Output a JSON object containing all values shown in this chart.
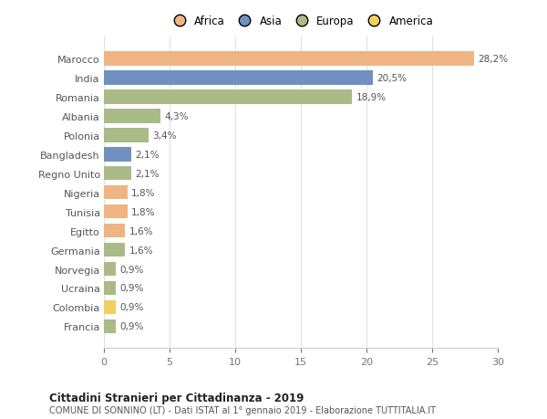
{
  "countries": [
    "Marocco",
    "India",
    "Romania",
    "Albania",
    "Polonia",
    "Bangladesh",
    "Regno Unito",
    "Nigeria",
    "Tunisia",
    "Egitto",
    "Germania",
    "Norvegia",
    "Ucraina",
    "Colombia",
    "Francia"
  ],
  "values": [
    28.2,
    20.5,
    18.9,
    4.3,
    3.4,
    2.1,
    2.1,
    1.8,
    1.8,
    1.6,
    1.6,
    0.9,
    0.9,
    0.9,
    0.9
  ],
  "labels": [
    "28,2%",
    "20,5%",
    "18,9%",
    "4,3%",
    "3,4%",
    "2,1%",
    "2,1%",
    "1,8%",
    "1,8%",
    "1,6%",
    "1,6%",
    "0,9%",
    "0,9%",
    "0,9%",
    "0,9%"
  ],
  "continents": [
    "Africa",
    "Asia",
    "Europa",
    "Europa",
    "Europa",
    "Asia",
    "Europa",
    "Africa",
    "Africa",
    "Africa",
    "Europa",
    "Europa",
    "Europa",
    "America",
    "Europa"
  ],
  "colors": {
    "Africa": "#F0B482",
    "Asia": "#7090C0",
    "Europa": "#AABB88",
    "America": "#F0D060"
  },
  "legend_order": [
    "Africa",
    "Asia",
    "Europa",
    "America"
  ],
  "legend_colors": [
    "#F0B482",
    "#7090C0",
    "#AABB88",
    "#F0D060"
  ],
  "title": "Cittadini Stranieri per Cittadinanza - 2019",
  "subtitle": "COMUNE DI SONNINO (LT) - Dati ISTAT al 1° gennaio 2019 - Elaborazione TUTTITALIA.IT",
  "xlim": [
    0,
    30
  ],
  "xticks": [
    0,
    5,
    10,
    15,
    20,
    25,
    30
  ],
  "bg_color": "#ffffff",
  "grid_color": "#e0e0e0",
  "bar_height": 0.75
}
